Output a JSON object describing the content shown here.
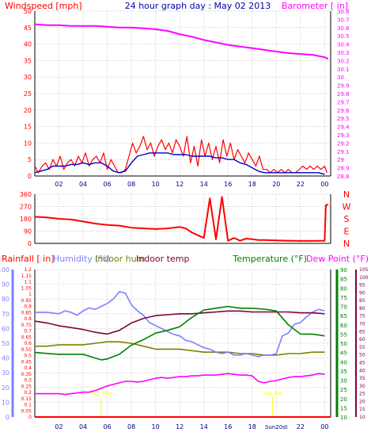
{
  "colors": {
    "grid": "#c8c8c8",
    "axis": "#000000",
    "windspeed": "#ff0000",
    "windavg": "#0000cc",
    "barometer": "#ff00ff",
    "direction": "#ff0000",
    "humidity": "#8080ff",
    "indoor_hum": "#808000",
    "indoor_temp": "#800040",
    "temperature": "#008000",
    "dewpoint": "#ff00ff",
    "rain": "#ff0000",
    "sun": "#ffff00",
    "dewpoint_axis": "#800040",
    "humidity_axis": "#8080ff",
    "temp_axis": "#008000",
    "baro_axis": "#ff00ff"
  },
  "chart_data": [
    {
      "type": "line",
      "title": "24 hour graph day : May 02 2013",
      "ylabel_left": "Windspeed [mph]",
      "ylabel_right": "Barometer [ in]",
      "x_ticks": [
        "02",
        "04",
        "06",
        "08",
        "10",
        "12",
        "14",
        "16",
        "18",
        "20",
        "22",
        "00"
      ],
      "xlim": [
        0,
        24.5
      ],
      "ylim_left": [
        0,
        50
      ],
      "y_ticks_left": [
        "0",
        "5",
        "10",
        "15",
        "20",
        "25",
        "30",
        "35",
        "40",
        "45",
        "50"
      ],
      "ylim_right": [
        28.8,
        30.8
      ],
      "y_ticks_right": [
        "28.8",
        "28.9",
        "29",
        "29.1",
        "29.2",
        "29.3",
        "29.4",
        "29.5",
        "29.6",
        "29.7",
        "29.8",
        "29.9",
        "30",
        "30.1",
        "30.2",
        "30.3",
        "30.4",
        "30.5",
        "30.6",
        "30.7",
        "30.8"
      ],
      "series": [
        {
          "axis": "left",
          "x": [
            0.0,
            0.3,
            0.6,
            0.9,
            1.2,
            1.5,
            1.8,
            2.1,
            2.4,
            2.7,
            3.0,
            3.3,
            3.6,
            3.9,
            4.2,
            4.5,
            4.8,
            5.1,
            5.4,
            5.7,
            6.0,
            6.3,
            6.6,
            6.9,
            7.2,
            7.5,
            7.8,
            8.1,
            8.4,
            8.7,
            9.0,
            9.3,
            9.6,
            9.9,
            10.2,
            10.5,
            10.8,
            11.1,
            11.4,
            11.7,
            12.0,
            12.3,
            12.6,
            12.9,
            13.2,
            13.5,
            13.8,
            14.1,
            14.4,
            14.7,
            15.0,
            15.3,
            15.6,
            15.9,
            16.2,
            16.5,
            16.8,
            17.1,
            17.4,
            17.7,
            18.0,
            18.3,
            18.6,
            18.9,
            19.2,
            19.5,
            19.8,
            20.1,
            20.4,
            20.7,
            21.0,
            21.3,
            21.6,
            21.9,
            22.2,
            22.5,
            22.8,
            23.1,
            23.4,
            23.7,
            24.0,
            24.2
          ],
          "y": [
            3,
            1,
            3,
            4,
            2,
            5,
            3,
            6,
            2,
            4,
            5,
            3,
            6,
            4,
            7,
            3,
            5,
            6,
            4,
            7,
            2,
            5,
            3,
            1,
            1,
            2,
            6,
            10,
            7,
            9,
            12,
            8,
            10,
            6,
            9,
            11,
            8,
            10,
            7,
            11,
            9,
            6,
            12,
            4,
            9,
            3,
            11,
            6,
            10,
            5,
            9,
            4,
            11,
            6,
            10,
            5,
            8,
            6,
            4,
            7,
            5,
            3,
            6,
            2,
            2,
            1,
            2,
            1,
            2,
            1,
            2,
            1,
            1,
            2,
            3,
            2,
            3,
            2,
            3,
            2,
            3,
            1
          ]
        },
        {
          "axis": "left",
          "x": [
            0.0,
            0.5,
            1.0,
            1.5,
            2.0,
            2.5,
            3.0,
            3.5,
            4.0,
            4.5,
            5.0,
            5.5,
            6.0,
            6.5,
            7.0,
            7.5,
            8.0,
            8.5,
            9.0,
            9.5,
            10.0,
            10.5,
            11.0,
            11.5,
            12.0,
            12.5,
            13.0,
            13.5,
            14.0,
            14.5,
            15.0,
            15.5,
            16.0,
            16.5,
            17.0,
            17.5,
            18.0,
            18.5,
            19.0,
            19.5,
            20.0,
            20.5,
            21.0,
            21.5,
            22.0,
            22.5,
            23.0,
            23.5,
            24.0
          ],
          "y": [
            1,
            1.5,
            2,
            3,
            3,
            3,
            3.5,
            3.5,
            4,
            3.5,
            4,
            4,
            3,
            1.5,
            1,
            1.5,
            4,
            6,
            6.5,
            7,
            7,
            7,
            7,
            6.5,
            6.5,
            6.5,
            6,
            6,
            6,
            6,
            5.5,
            5.5,
            5,
            5,
            4,
            3.5,
            2.5,
            1.5,
            1,
            1,
            1,
            1,
            1,
            1,
            1,
            1,
            1,
            1,
            0.5
          ]
        },
        {
          "axis": "right",
          "x": [
            0.0,
            1.0,
            2.0,
            3.0,
            4.0,
            5.0,
            6.0,
            7.0,
            8.0,
            9.0,
            10.0,
            11.0,
            12.0,
            13.0,
            14.0,
            15.0,
            16.0,
            17.0,
            18.0,
            19.0,
            20.0,
            21.0,
            22.0,
            23.0,
            24.0,
            24.3
          ],
          "y": [
            30.64,
            30.63,
            30.63,
            30.62,
            30.62,
            30.62,
            30.61,
            30.6,
            30.6,
            30.59,
            30.58,
            30.56,
            30.52,
            30.49,
            30.45,
            30.42,
            30.39,
            30.37,
            30.35,
            30.33,
            30.31,
            30.29,
            30.28,
            30.27,
            30.24,
            30.22
          ]
        }
      ]
    },
    {
      "type": "line",
      "xlim": [
        0,
        24.5
      ],
      "ylim": [
        0,
        360
      ],
      "y_ticks": [
        "0",
        "90",
        "180",
        "270",
        "360"
      ],
      "compass_labels": [
        "N",
        "W",
        "S",
        "E",
        "N"
      ],
      "series": [
        {
          "x": [
            0.0,
            1.0,
            2.0,
            3.0,
            4.0,
            5.0,
            6.0,
            7.0,
            8.0,
            9.0,
            10.0,
            11.0,
            12.0,
            12.5,
            13.0,
            13.5,
            14.0,
            14.5,
            15.0,
            15.5,
            16.0,
            16.5,
            17.0,
            17.5,
            18.0,
            18.5,
            19.0,
            20.0,
            21.0,
            22.0,
            23.0,
            24.0,
            24.1,
            24.3
          ],
          "y": [
            195,
            190,
            180,
            175,
            160,
            145,
            135,
            130,
            115,
            110,
            105,
            110,
            120,
            110,
            80,
            60,
            40,
            330,
            30,
            340,
            20,
            40,
            20,
            35,
            30,
            25,
            25,
            22,
            20,
            18,
            18,
            20,
            280,
            285
          ]
        }
      ]
    },
    {
      "type": "line",
      "ylabel_rain": "Rainfall [ in]",
      "legend": [
        "Humidity (%)",
        "Indoor hum",
        "Indoor temp",
        "Temperature (°F)",
        "Dew Point (°F)"
      ],
      "x_ticks": [
        "02",
        "04",
        "06",
        "08",
        "10",
        "12",
        "14",
        "16",
        "18",
        "Sun20st",
        "22",
        "00"
      ],
      "xlim": [
        0,
        24.5
      ],
      "ylim_rain": [
        0,
        1.2
      ],
      "y_ticks_rain": [
        "0",
        "0.05",
        "0.1",
        "0.15",
        "0.2",
        "0.25",
        "0.3",
        "0.35",
        "0.4",
        "0.45",
        "0.5",
        "0.55",
        "0.6",
        "0.65",
        "0.7",
        "0.75",
        "0.8",
        "0.85",
        "0.9",
        "0.95",
        "1",
        "1.05",
        "1.1",
        "1.15",
        "1.2"
      ],
      "ylim_humidity": [
        0,
        100
      ],
      "y_ticks_humidity": [
        "0",
        "10",
        "20",
        "30",
        "40",
        "50",
        "60",
        "70",
        "80",
        "90",
        "100"
      ],
      "ylim_temperature": [
        10,
        90
      ],
      "y_ticks_temperature": [
        "10",
        "15",
        "20",
        "25",
        "30",
        "35",
        "40",
        "45",
        "50",
        "55",
        "60",
        "65",
        "70",
        "75",
        "80",
        "85",
        "90"
      ],
      "ylim_dewpoint": [
        10,
        105
      ],
      "y_ticks_dewpoint": [
        "10",
        "15",
        "20",
        "25",
        "30",
        "35",
        "40",
        "45",
        "50",
        "55",
        "60",
        "65",
        "70",
        "75",
        "80",
        "85",
        "90",
        "95",
        "100",
        "105"
      ],
      "annotations": [
        "Sun Rise",
        "Sun Set"
      ],
      "sunrise_x": 5.5,
      "sunset_x": 19.7,
      "series": [
        {
          "name": "Humidity (%)",
          "axis": "humidity",
          "x": [
            0.0,
            1.0,
            2.0,
            2.5,
            3.0,
            3.5,
            4.0,
            4.5,
            5.0,
            5.5,
            6.0,
            6.5,
            7.0,
            7.5,
            8.0,
            8.5,
            9.0,
            9.5,
            10.0,
            10.5,
            11.0,
            11.5,
            12.0,
            12.5,
            13.0,
            13.5,
            14.0,
            14.5,
            15.0,
            15.5,
            16.0,
            16.5,
            17.0,
            17.5,
            18.0,
            18.5,
            19.0,
            19.5,
            20.0,
            20.5,
            21.0,
            21.5,
            22.0,
            22.5,
            23.0,
            23.5,
            24.0
          ],
          "y": [
            71,
            71,
            70,
            72,
            71,
            69,
            72,
            74,
            73,
            75,
            77,
            80,
            85,
            84,
            76,
            72,
            69,
            64,
            62,
            60,
            58,
            56,
            55,
            52,
            51,
            49,
            47,
            46,
            44,
            43,
            44,
            42,
            42,
            43,
            42,
            41,
            42,
            42,
            43,
            55,
            57,
            63,
            64,
            68,
            71,
            73,
            72
          ]
        },
        {
          "name": "Indoor hum",
          "axis": "humidity",
          "x": [
            0.0,
            1.0,
            2.0,
            3.0,
            4.0,
            5.0,
            6.0,
            7.0,
            8.0,
            9.0,
            10.0,
            11.0,
            12.0,
            13.0,
            14.0,
            15.0,
            16.0,
            17.0,
            18.0,
            19.0,
            20.0,
            21.0,
            22.0,
            23.0,
            24.0
          ],
          "y": [
            48,
            48,
            49,
            49,
            49,
            50,
            51,
            51,
            50,
            48,
            46,
            46,
            46,
            45,
            44,
            44,
            44,
            43,
            43,
            42,
            42,
            43,
            43,
            44,
            44
          ]
        },
        {
          "name": "Indoor temp",
          "axis": "temperature",
          "x": [
            0.0,
            1.0,
            2.0,
            3.0,
            4.0,
            5.0,
            6.0,
            7.0,
            8.0,
            9.0,
            10.0,
            11.0,
            12.0,
            13.0,
            14.0,
            15.0,
            16.0,
            17.0,
            18.0,
            19.0,
            20.0,
            21.0,
            22.0,
            23.0,
            24.0
          ],
          "y": [
            62,
            61,
            59.5,
            58.5,
            57.5,
            56,
            55,
            57,
            61,
            63.5,
            65,
            65.5,
            66,
            66,
            66.5,
            67,
            67.5,
            67.5,
            67,
            67,
            67,
            67,
            66.5,
            66.5,
            66
          ]
        },
        {
          "name": "Temperature (°F)",
          "axis": "temperature",
          "x": [
            0.0,
            1.0,
            2.0,
            3.0,
            4.0,
            5.0,
            5.5,
            6.0,
            7.0,
            8.0,
            9.0,
            10.0,
            11.0,
            12.0,
            13.0,
            14.0,
            15.0,
            16.0,
            17.0,
            18.0,
            19.0,
            19.5,
            20.0,
            21.0,
            22.0,
            23.0,
            24.0
          ],
          "y": [
            45,
            44.5,
            44,
            44,
            44,
            42,
            41,
            41.5,
            44,
            49,
            52,
            55.5,
            57,
            59,
            64,
            68,
            69,
            70,
            69,
            69,
            68.5,
            68,
            67.5,
            60,
            55,
            55,
            54
          ]
        },
        {
          "name": "Dew Point (°F)",
          "axis": "dewpoint",
          "x": [
            0.0,
            1.0,
            2.0,
            2.5,
            3.0,
            3.5,
            4.0,
            4.5,
            5.0,
            5.5,
            6.0,
            6.5,
            7.0,
            7.5,
            8.0,
            8.5,
            9.0,
            9.5,
            10.0,
            10.5,
            11.0,
            11.5,
            12.0,
            12.5,
            13.0,
            13.5,
            14.0,
            14.5,
            15.0,
            15.5,
            16.0,
            16.5,
            17.0,
            17.5,
            18.0,
            18.5,
            19.0,
            19.5,
            20.0,
            20.5,
            21.0,
            21.5,
            22.0,
            22.5,
            23.0,
            23.5,
            24.0
          ],
          "y": [
            25,
            25,
            25,
            24.5,
            25,
            25.5,
            26,
            26,
            27,
            28.5,
            30,
            31,
            32,
            33,
            33,
            32.5,
            33,
            34,
            35,
            35.5,
            35,
            35.5,
            36,
            36,
            36.5,
            36.5,
            37,
            37,
            37,
            37.5,
            38,
            37.5,
            37,
            37,
            36.5,
            33,
            32,
            33,
            33.5,
            34.5,
            35.5,
            36,
            36,
            36.5,
            37,
            38,
            37.5
          ]
        },
        {
          "name": "Rainfall",
          "axis": "rain",
          "x": [
            0.0,
            24.5
          ],
          "y": [
            0,
            0
          ]
        }
      ]
    }
  ]
}
